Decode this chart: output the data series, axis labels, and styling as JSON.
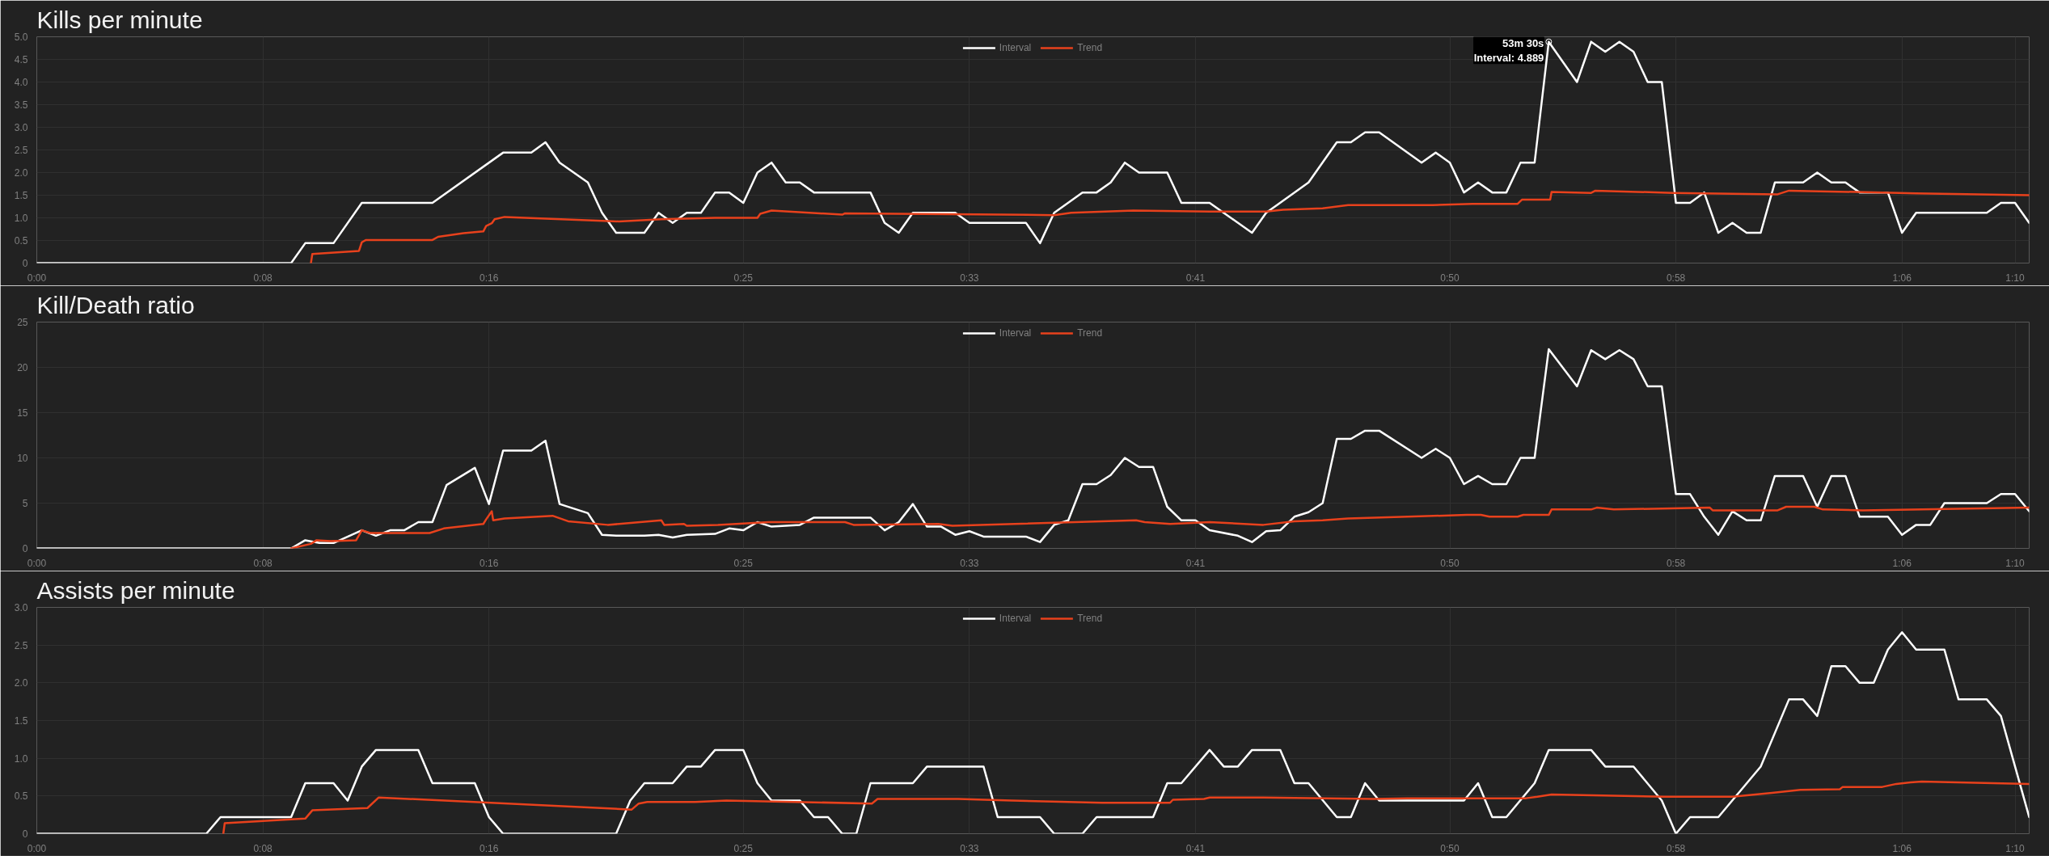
{
  "chart_data": [
    {
      "type": "line",
      "title": "Kills per minute",
      "legend": "top",
      "grid": true,
      "xlim": [
        0,
        70.5
      ],
      "xticks": [
        {
          "value": 0,
          "label": "0:00"
        },
        {
          "value": 8,
          "label": "0:08"
        },
        {
          "value": 16,
          "label": "0:16"
        },
        {
          "value": 25,
          "label": "0:25"
        },
        {
          "value": 33,
          "label": "0:33"
        },
        {
          "value": 41,
          "label": "0:41"
        },
        {
          "value": 50,
          "label": "0:50"
        },
        {
          "value": 58,
          "label": "0:58"
        },
        {
          "value": 66,
          "label": "1:06"
        },
        {
          "value": 70,
          "label": "1:10"
        }
      ],
      "ylim": [
        0,
        5
      ],
      "yticks": [
        0,
        0.5,
        {
          "value": 1,
          "label": "1.0"
        },
        1.5,
        {
          "value": 2,
          "label": "2.0"
        },
        2.5,
        {
          "value": 3,
          "label": "3.0"
        },
        3.5,
        {
          "value": 4,
          "label": "4.0"
        },
        4.5,
        {
          "value": 5,
          "label": "5.0"
        }
      ],
      "annotations": [
        {
          "text": "53m 30s\nInterval: 4.889",
          "x": 53.5,
          "y": 4.889
        }
      ],
      "series": [
        {
          "name": "Interval",
          "color": "#ffffff",
          "x": [
            0,
            9,
            9.5,
            10.5,
            11.5,
            14,
            16.5,
            17.5,
            18,
            18.5,
            19.5,
            20,
            20.5,
            21.5,
            22,
            22.5,
            23,
            23.5,
            24,
            24.5,
            25,
            25.5,
            26,
            26.5,
            27,
            27.5,
            29.5,
            30,
            30.5,
            31,
            32.5,
            33,
            35,
            35.5,
            36,
            37,
            37.5,
            38,
            38.5,
            39,
            40,
            40.5,
            41.5,
            43,
            43.5,
            45,
            46,
            46.5,
            47,
            47.5,
            49,
            49.5,
            50,
            50.5,
            51,
            51.5,
            52,
            52.5,
            53,
            53.5,
            54.5,
            55,
            55.5,
            56,
            56.5,
            57,
            57.5,
            58,
            58.5,
            59,
            59.5,
            60,
            60.5,
            61,
            61.5,
            62.5,
            63,
            63.5,
            64,
            64.5,
            65.5,
            66,
            66.5,
            69,
            69.5,
            70,
            70.5
          ],
          "values": [
            0,
            0,
            0.44,
            0.44,
            1.33,
            1.33,
            2.44,
            2.44,
            2.67,
            2.22,
            1.78,
            1.11,
            0.67,
            0.67,
            1.11,
            0.89,
            1.11,
            1.11,
            1.56,
            1.56,
            1.33,
            2.0,
            2.22,
            1.78,
            1.78,
            1.56,
            1.56,
            0.89,
            0.67,
            1.11,
            1.11,
            0.89,
            0.89,
            0.44,
            1.11,
            1.56,
            1.56,
            1.78,
            2.22,
            2.0,
            2.0,
            1.33,
            1.33,
            0.67,
            1.11,
            1.78,
            2.67,
            2.67,
            2.89,
            2.89,
            2.22,
            2.44,
            2.22,
            1.56,
            1.78,
            1.56,
            1.56,
            2.22,
            2.22,
            4.889,
            4.0,
            4.89,
            4.67,
            4.89,
            4.67,
            4.0,
            4.0,
            1.33,
            1.33,
            1.56,
            0.67,
            0.89,
            0.67,
            0.67,
            1.78,
            1.78,
            2.0,
            1.78,
            1.78,
            1.56,
            1.56,
            0.67,
            1.11,
            1.11,
            1.33,
            1.33,
            0.89
          ]
        },
        {
          "name": "Trend",
          "color": "#e8411c",
          "x": [
            9.7,
            9.75,
            11.4,
            11.5,
            11.65,
            14,
            14.2,
            15.1,
            15.8,
            15.9,
            16.1,
            16.2,
            16.55,
            20.6,
            22.1,
            24,
            25.5,
            25.6,
            26,
            28.5,
            28.6,
            36,
            36.6,
            38.8,
            41.5,
            43.5,
            44.1,
            45.5,
            46.4,
            49.4,
            50.8,
            52.4,
            52.55,
            53.55,
            53.6,
            55,
            55.15,
            57.9,
            61.6,
            62,
            64.4,
            66.5,
            70.5
          ],
          "values": [
            0,
            0.2,
            0.27,
            0.46,
            0.51,
            0.51,
            0.58,
            0.66,
            0.7,
            0.82,
            0.88,
            0.97,
            1.02,
            0.92,
            0.97,
            1.0,
            1.0,
            1.09,
            1.16,
            1.07,
            1.1,
            1.06,
            1.11,
            1.16,
            1.14,
            1.14,
            1.18,
            1.21,
            1.28,
            1.28,
            1.31,
            1.31,
            1.4,
            1.4,
            1.57,
            1.55,
            1.6,
            1.55,
            1.52,
            1.6,
            1.57,
            1.54,
            1.5
          ]
        }
      ]
    },
    {
      "type": "line",
      "title": "Kill/Death ratio",
      "legend": "top",
      "grid": true,
      "xlim": [
        0,
        70.5
      ],
      "xticks": [
        {
          "value": 0,
          "label": "0:00"
        },
        {
          "value": 8,
          "label": "0:08"
        },
        {
          "value": 16,
          "label": "0:16"
        },
        {
          "value": 25,
          "label": "0:25"
        },
        {
          "value": 33,
          "label": "0:33"
        },
        {
          "value": 41,
          "label": "0:41"
        },
        {
          "value": 50,
          "label": "0:50"
        },
        {
          "value": 58,
          "label": "0:58"
        },
        {
          "value": 66,
          "label": "1:06"
        },
        {
          "value": 70,
          "label": "1:10"
        }
      ],
      "ylim": [
        0,
        25
      ],
      "yticks": [
        0,
        5,
        10,
        15,
        20,
        25
      ],
      "series": [
        {
          "name": "Interval",
          "color": "#ffffff",
          "x": [
            0,
            9,
            9.5,
            10,
            10.5,
            11.5,
            12,
            12.5,
            13,
            13.5,
            14,
            14.5,
            15.5,
            16,
            16.5,
            17.5,
            18,
            18.5,
            19.5,
            20,
            20.5,
            21.5,
            22,
            22.5,
            23,
            24,
            24.5,
            25,
            25.5,
            26,
            27,
            27.5,
            29.5,
            30,
            30.5,
            31,
            31.5,
            32,
            32.5,
            33,
            33.5,
            35,
            35.5,
            36,
            36.5,
            37,
            37.5,
            38,
            38.5,
            39,
            39.5,
            40,
            40.5,
            41,
            41.5,
            42.5,
            43,
            43.5,
            44,
            44.5,
            45,
            45.5,
            46,
            46.5,
            47,
            47.5,
            49,
            49.5,
            50,
            50.5,
            51,
            51.5,
            52,
            52.5,
            53,
            53.5,
            54.5,
            55,
            55.5,
            56,
            56.5,
            57,
            57.5,
            58,
            58.5,
            59,
            59.5,
            60,
            60.5,
            61,
            61.5,
            62.5,
            63,
            63.5,
            64,
            64.5,
            65.5,
            66,
            66.5,
            67,
            67.5,
            69,
            69.5,
            70,
            70.5
          ],
          "values": [
            0,
            0,
            0.9,
            0.6,
            0.6,
            2.0,
            1.4,
            2.0,
            2.0,
            2.9,
            2.9,
            7.0,
            8.9,
            4.9,
            10.8,
            10.8,
            11.9,
            4.9,
            3.9,
            1.5,
            1.4,
            1.4,
            1.5,
            1.2,
            1.5,
            1.6,
            2.2,
            2.0,
            2.9,
            2.4,
            2.6,
            3.4,
            3.4,
            2.0,
            2.9,
            4.9,
            2.4,
            2.4,
            1.5,
            1.9,
            1.3,
            1.3,
            0.7,
            2.6,
            3.1,
            7.1,
            7.1,
            8.1,
            10.0,
            9.0,
            9.0,
            4.6,
            3.1,
            3.1,
            2.0,
            1.4,
            0.7,
            1.9,
            2.0,
            3.5,
            4.0,
            5.0,
            12.1,
            12.1,
            13.0,
            13.0,
            10.0,
            11.0,
            10.0,
            7.1,
            8.0,
            7.1,
            7.1,
            10.0,
            10.0,
            22.0,
            17.9,
            21.9,
            20.9,
            21.9,
            20.9,
            17.9,
            17.9,
            6.0,
            6.0,
            3.5,
            1.5,
            4.1,
            3.1,
            3.1,
            8.0,
            8.0,
            4.6,
            8.0,
            8.0,
            3.5,
            3.5,
            1.5,
            2.6,
            2.6,
            5.0,
            5.0,
            6.0,
            6.0,
            4.1
          ]
        },
        {
          "name": "Trend",
          "color": "#e8411c",
          "x": [
            9.0,
            9.7,
            9.9,
            10.4,
            11.3,
            11.5,
            11.8,
            13.9,
            14.4,
            15.8,
            15.9,
            16.1,
            16.15,
            16.55,
            18.25,
            18.8,
            20.2,
            20.6,
            22.1,
            22.2,
            22.9,
            23.0,
            24.1,
            25.9,
            28.6,
            28.9,
            31.9,
            32.4,
            38.9,
            39.2,
            40.1,
            41.5,
            43.4,
            44.5,
            45.5,
            46.4,
            48.5,
            50.6,
            51.1,
            51.4,
            52.4,
            52.6,
            53.5,
            53.6,
            55,
            55.2,
            55.8,
            59.2,
            59.3,
            61.6,
            61.9,
            62.9,
            63.2,
            64.6,
            66.7,
            70.5
          ],
          "values": [
            0,
            0.5,
            0.9,
            0.8,
            0.9,
            2.0,
            1.7,
            1.7,
            2.2,
            2.7,
            3.2,
            4.1,
            3.1,
            3.3,
            3.6,
            3.0,
            2.6,
            2.7,
            3.1,
            2.6,
            2.7,
            2.5,
            2.6,
            2.9,
            2.9,
            2.6,
            2.7,
            2.5,
            3.1,
            2.9,
            2.7,
            2.9,
            2.6,
            3.0,
            3.1,
            3.3,
            3.5,
            3.7,
            3.7,
            3.5,
            3.5,
            3.7,
            3.7,
            4.3,
            4.3,
            4.5,
            4.3,
            4.5,
            4.2,
            4.2,
            4.6,
            4.6,
            4.3,
            4.2,
            4.3,
            4.5
          ]
        }
      ]
    },
    {
      "type": "line",
      "title": "Assists per minute",
      "legend": "top",
      "grid": true,
      "xlim": [
        0,
        70.5
      ],
      "xticks": [
        {
          "value": 0,
          "label": "0:00"
        },
        {
          "value": 8,
          "label": "0:08"
        },
        {
          "value": 16,
          "label": "0:16"
        },
        {
          "value": 25,
          "label": "0:25"
        },
        {
          "value": 33,
          "label": "0:33"
        },
        {
          "value": 41,
          "label": "0:41"
        },
        {
          "value": 50,
          "label": "0:50"
        },
        {
          "value": 58,
          "label": "0:58"
        },
        {
          "value": 66,
          "label": "1:06"
        },
        {
          "value": 70,
          "label": "1:10"
        }
      ],
      "ylim": [
        0,
        3
      ],
      "yticks": [
        0,
        0.5,
        {
          "value": 1,
          "label": "1.0"
        },
        1.5,
        {
          "value": 2,
          "label": "2.0"
        },
        2.5,
        {
          "value": 3,
          "label": "3.0"
        }
      ],
      "series": [
        {
          "name": "Interval",
          "color": "#ffffff",
          "x": [
            0,
            6,
            6.5,
            9,
            9.5,
            10.5,
            11,
            11.5,
            12,
            13.5,
            14,
            15.5,
            16,
            16.5,
            20.5,
            21,
            21.5,
            22.5,
            23,
            23.5,
            24,
            25,
            25.5,
            26,
            27,
            27.5,
            28,
            28.5,
            29,
            29.5,
            31,
            31.5,
            33.5,
            34,
            35.5,
            36,
            37,
            37.5,
            39.5,
            40,
            40.5,
            41.5,
            42,
            42.5,
            43,
            44,
            44.5,
            45,
            46,
            46.5,
            47,
            47.5,
            50.5,
            51,
            51.5,
            52,
            53,
            53.5,
            55,
            55.5,
            56.5,
            57.5,
            58,
            58.5,
            59.5,
            61,
            62,
            62.5,
            63,
            63.5,
            64,
            64.5,
            65,
            65.5,
            66,
            66.5,
            67.5,
            68,
            69,
            69.5,
            70.5
          ],
          "values": [
            0,
            0,
            0.22,
            0.22,
            0.67,
            0.67,
            0.44,
            0.89,
            1.11,
            1.11,
            0.67,
            0.67,
            0.22,
            0,
            0,
            0.44,
            0.67,
            0.67,
            0.89,
            0.89,
            1.11,
            1.11,
            0.67,
            0.44,
            0.44,
            0.22,
            0.22,
            0,
            0,
            0.67,
            0.67,
            0.89,
            0.89,
            0.22,
            0.22,
            0,
            0,
            0.22,
            0.22,
            0.67,
            0.67,
            1.11,
            0.89,
            0.89,
            1.11,
            1.11,
            0.67,
            0.67,
            0.22,
            0.22,
            0.67,
            0.44,
            0.44,
            0.67,
            0.22,
            0.22,
            0.67,
            1.11,
            1.11,
            0.89,
            0.89,
            0.44,
            0,
            0.22,
            0.22,
            0.89,
            1.78,
            1.78,
            1.56,
            2.22,
            2.22,
            2.0,
            2.0,
            2.44,
            2.67,
            2.44,
            2.44,
            1.78,
            1.78,
            1.56,
            0.22
          ]
        },
        {
          "name": "Trend",
          "color": "#e8411c",
          "x": [
            6.6,
            6.65,
            9.5,
            9.75,
            11.7,
            12.1,
            21.05,
            21.3,
            21.6,
            23.3,
            24.4,
            29.55,
            29.75,
            32.6,
            34.5,
            37.7,
            40.1,
            40.2,
            41.3,
            41.5,
            43.4,
            47.3,
            48.5,
            52.7,
            53.1,
            53.6,
            57.6,
            60,
            61.4,
            62.4,
            63.8,
            63.9,
            65.3,
            65.8,
            66.3,
            66.7,
            70.5
          ],
          "values": [
            0,
            0.14,
            0.2,
            0.31,
            0.34,
            0.48,
            0.32,
            0.4,
            0.42,
            0.42,
            0.44,
            0.4,
            0.46,
            0.46,
            0.44,
            0.41,
            0.41,
            0.45,
            0.46,
            0.48,
            0.48,
            0.46,
            0.47,
            0.47,
            0.49,
            0.52,
            0.49,
            0.49,
            0.54,
            0.58,
            0.59,
            0.62,
            0.62,
            0.66,
            0.68,
            0.69,
            0.66
          ]
        }
      ]
    }
  ]
}
